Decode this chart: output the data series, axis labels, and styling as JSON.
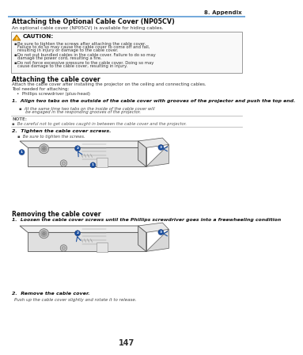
{
  "bg_color": "#ffffff",
  "header_line_color": "#5b9bd5",
  "header_text": "8. Appendix",
  "page_number": "147",
  "title1": "Attaching the Optional Cable Cover (NP05CV)",
  "subtitle1": "An optional cable cover (NP05CV) is available for hiding cables.",
  "caution_title": "CAUTION:",
  "caution_b1": "Be sure to tighten the screws after attaching the cable cover. Failure to do so may cause the cable cover to come off and fall, resulting in injury or damage to the cable cover.",
  "caution_b2": "Do not put bundled cables in the cable cover. Failure to do so may damage the power cord, resulting a fire.",
  "caution_b3": "Do not force excessive pressure to the cable cover. Doing so may cause damage to the cable cover, resulting in injury.",
  "section2_title": "Attaching the cable cover",
  "section2_desc1": "Attach the cable cover after installing the projector on the ceiling and connecting cables.",
  "section2_desc2": "Tool needed for attaching:",
  "section2_tool": "Phillips screwdriver (plus-head)",
  "step1_bold": "1.  Align two tabs on the outside of the cable cover with grooves of the projector and push the top end.",
  "step1_sub": "At the same time two tabs on the inside of the cable cover will be engaged in the responding grooves of the projector.",
  "note_label": "NOTE:",
  "note_text": "Be careful not to get cables caught in between the cable cover and the projector.",
  "step2_bold": "2.  Tighten the cable cover screws.",
  "step2_sub": "Be sure to tighten the screws.",
  "section3_title": "Removing the cable cover",
  "remove1_bold": "1.  Loosen the cable cover screws until the Phillips screwdriver goes into a freewheeling condition",
  "remove2_bold": "2.  Remove the cable cover.",
  "remove2_sub": "Push up the cable cover slightly and rotate it to release."
}
